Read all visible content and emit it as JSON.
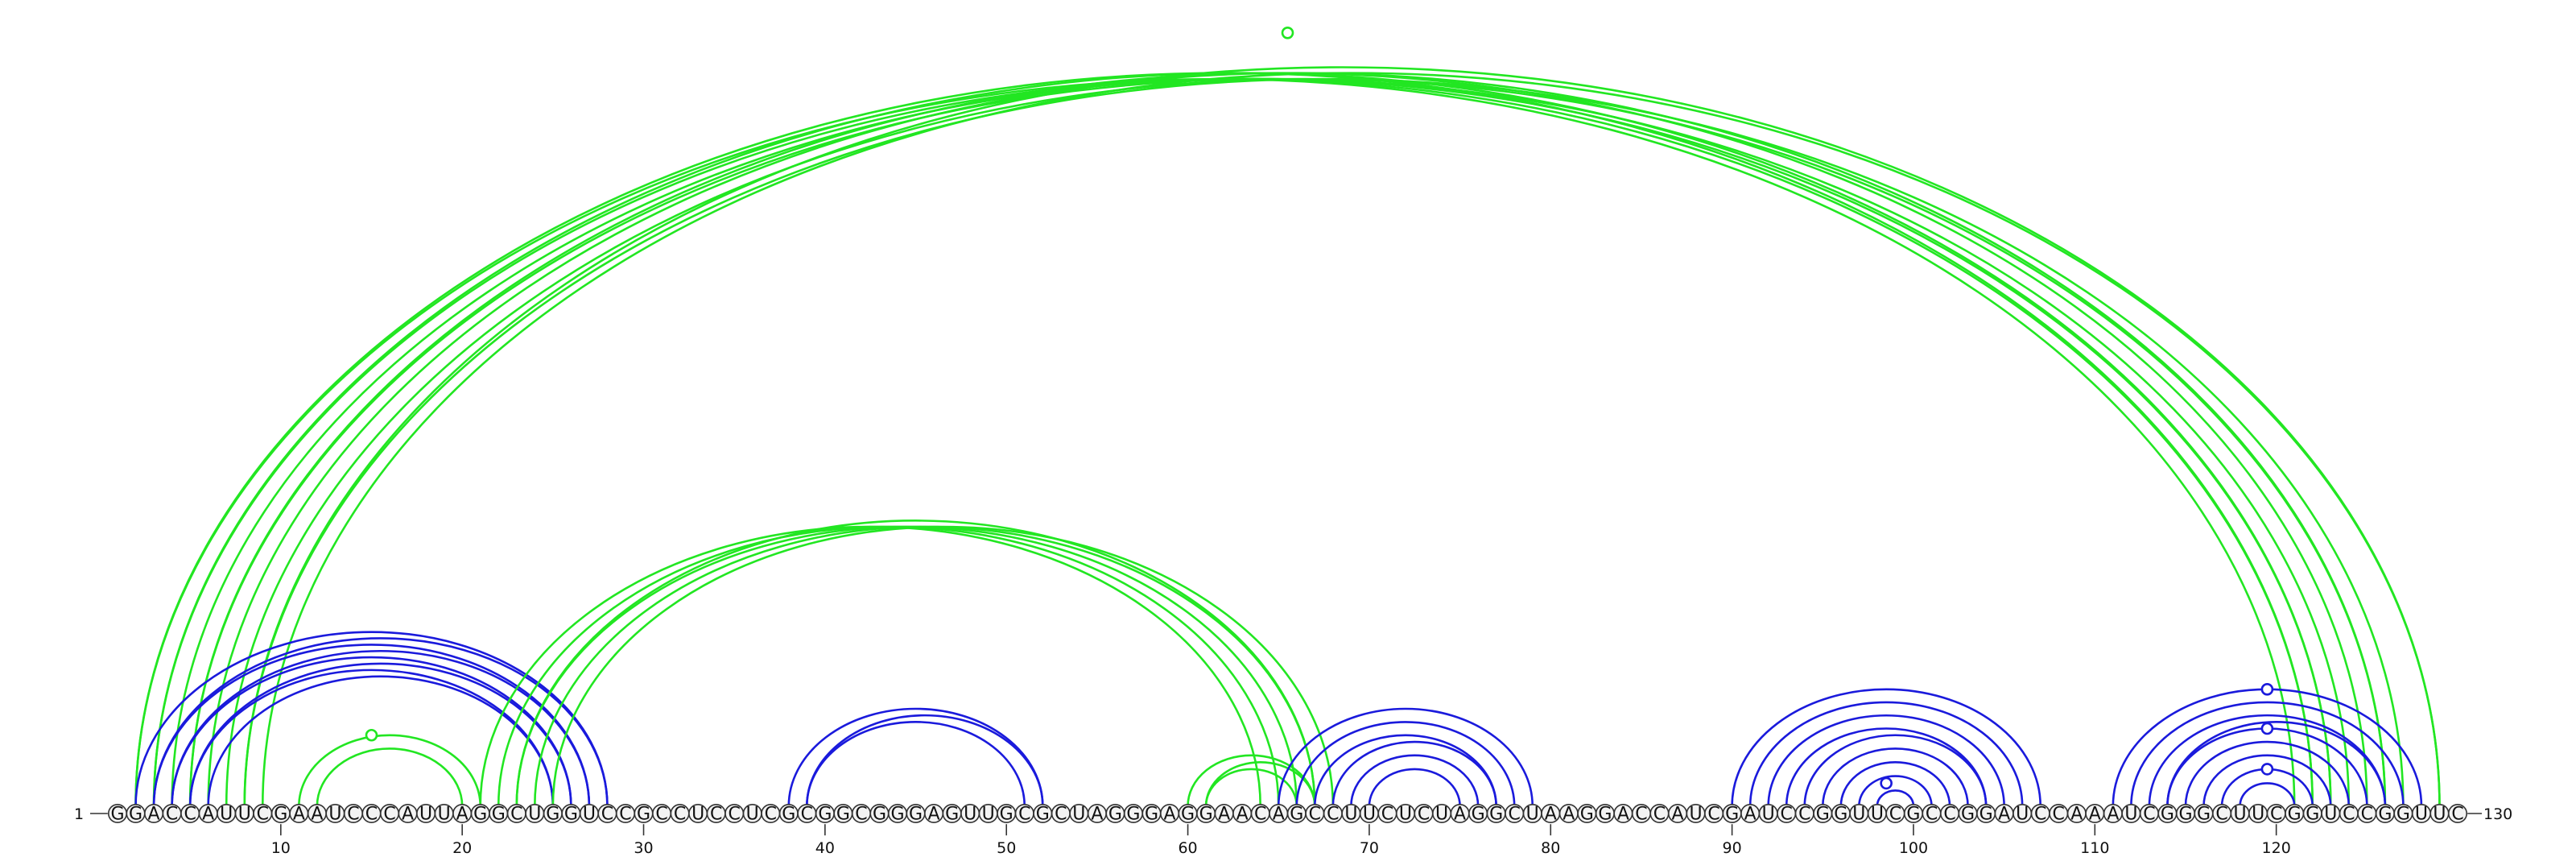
{
  "chart_data": {
    "type": "arc-diagram",
    "sequence": "GGACCAUUCGAAUCCCAUUAGGCUGGUCCGCCUCCUCGCGGCGGGAGUUGCGCUAGGGAGGAACAGCCUUCUCUAGGCUAAGGACCAUCGAUCCGGUUCGCCGGAUCCAAAUCGGGCUUCGGUCCGGUUC",
    "start_label": "1",
    "end_label": "130",
    "ticks": [
      10,
      20,
      30,
      40,
      50,
      60,
      70,
      80,
      90,
      100,
      110,
      120
    ],
    "colors": {
      "blue": "#1a1adc",
      "green": "#22e622"
    },
    "arcs": [
      {
        "i": 2,
        "j": 121,
        "color": "green"
      },
      {
        "i": 2,
        "j": 122,
        "color": "green"
      },
      {
        "i": 3,
        "j": 122,
        "color": "green"
      },
      {
        "i": 3,
        "j": 123,
        "color": "green"
      },
      {
        "i": 4,
        "j": 123,
        "color": "green"
      },
      {
        "i": 5,
        "j": 124,
        "color": "green"
      },
      {
        "i": 5,
        "j": 125,
        "color": "green"
      },
      {
        "i": 6,
        "j": 126,
        "color": "green"
      },
      {
        "i": 7,
        "j": 126,
        "color": "green"
      },
      {
        "i": 8,
        "j": 127,
        "color": "green"
      },
      {
        "i": 8,
        "j": 129,
        "color": "green"
      },
      {
        "i": 9,
        "j": 129,
        "color": "green"
      },
      {
        "i": 2,
        "j": 28,
        "color": "blue"
      },
      {
        "i": 3,
        "j": 27,
        "color": "blue"
      },
      {
        "i": 3,
        "j": 28,
        "color": "blue"
      },
      {
        "i": 4,
        "j": 26,
        "color": "blue"
      },
      {
        "i": 4,
        "j": 27,
        "color": "blue"
      },
      {
        "i": 5,
        "j": 25,
        "color": "blue"
      },
      {
        "i": 5,
        "j": 26,
        "color": "blue"
      },
      {
        "i": 6,
        "j": 25,
        "color": "blue"
      },
      {
        "i": 11,
        "j": 21,
        "color": "green"
      },
      {
        "i": 12,
        "j": 20,
        "color": "green"
      },
      {
        "i": 21,
        "j": 64,
        "color": "green"
      },
      {
        "i": 22,
        "j": 65,
        "color": "green"
      },
      {
        "i": 23,
        "j": 66,
        "color": "green"
      },
      {
        "i": 23,
        "j": 67,
        "color": "green"
      },
      {
        "i": 24,
        "j": 67,
        "color": "green"
      },
      {
        "i": 25,
        "j": 68,
        "color": "green"
      },
      {
        "i": 38,
        "j": 52,
        "color": "blue"
      },
      {
        "i": 39,
        "j": 51,
        "color": "blue"
      },
      {
        "i": 39,
        "j": 52,
        "color": "blue"
      },
      {
        "i": 60,
        "j": 67,
        "color": "green"
      },
      {
        "i": 61,
        "j": 66,
        "color": "green"
      },
      {
        "i": 61,
        "j": 67,
        "color": "green"
      },
      {
        "i": 65,
        "j": 79,
        "color": "blue"
      },
      {
        "i": 66,
        "j": 78,
        "color": "blue"
      },
      {
        "i": 67,
        "j": 77,
        "color": "blue"
      },
      {
        "i": 68,
        "j": 77,
        "color": "blue"
      },
      {
        "i": 69,
        "j": 76,
        "color": "blue"
      },
      {
        "i": 70,
        "j": 75,
        "color": "blue"
      },
      {
        "i": 90,
        "j": 107,
        "color": "blue"
      },
      {
        "i": 91,
        "j": 106,
        "color": "blue"
      },
      {
        "i": 92,
        "j": 105,
        "color": "blue"
      },
      {
        "i": 93,
        "j": 104,
        "color": "blue"
      },
      {
        "i": 94,
        "j": 104,
        "color": "blue"
      },
      {
        "i": 95,
        "j": 103,
        "color": "blue"
      },
      {
        "i": 96,
        "j": 102,
        "color": "blue"
      },
      {
        "i": 97,
        "j": 101,
        "color": "blue"
      },
      {
        "i": 98,
        "j": 100,
        "color": "blue"
      },
      {
        "i": 111,
        "j": 128,
        "color": "blue"
      },
      {
        "i": 112,
        "j": 127,
        "color": "blue"
      },
      {
        "i": 113,
        "j": 126,
        "color": "blue"
      },
      {
        "i": 114,
        "j": 125,
        "color": "blue"
      },
      {
        "i": 114,
        "j": 126,
        "color": "blue"
      },
      {
        "i": 115,
        "j": 124,
        "color": "blue"
      },
      {
        "i": 116,
        "j": 123,
        "color": "blue"
      },
      {
        "i": 117,
        "j": 122,
        "color": "blue"
      },
      {
        "i": 118,
        "j": 121,
        "color": "blue"
      }
    ],
    "markers": [
      {
        "position": 65.5,
        "arc_i": 2,
        "arc_j": 129,
        "color": "green"
      },
      {
        "position": 15,
        "arc_i": 10,
        "arc_j": 20,
        "color": "green"
      },
      {
        "position": 98.5,
        "arc_i": 97,
        "arc_j": 100,
        "color": "blue"
      },
      {
        "position": 119.5,
        "arc_i": 111,
        "arc_j": 128,
        "color": "blue"
      },
      {
        "position": 119.5,
        "arc_i": 114,
        "arc_j": 125,
        "color": "blue"
      },
      {
        "position": 119.5,
        "arc_i": 117,
        "arc_j": 122,
        "color": "blue"
      }
    ]
  }
}
